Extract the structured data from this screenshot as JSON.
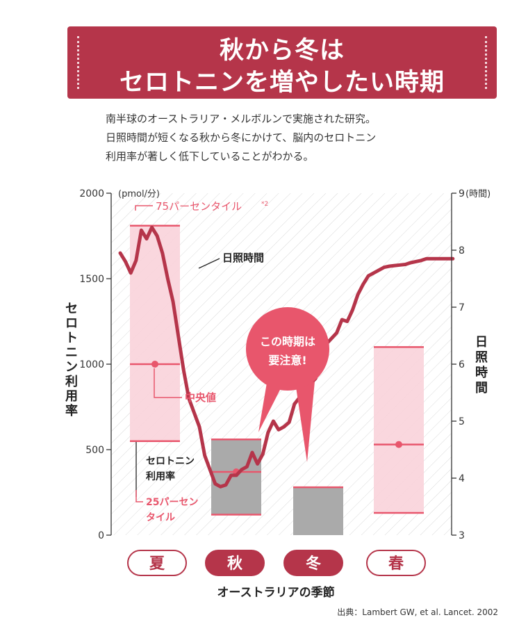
{
  "header": {
    "title_line1": "秋から冬は",
    "title_line2": "セロトニンを増やしたい時期"
  },
  "description": [
    "南半球のオーストラリア・メルボルンで実施された研究。",
    "日照時間が短くなる秋から冬にかけて、脳内のセロトニン",
    "利用率が著しく低下していることがわかる。"
  ],
  "source": "出典：Lambert GW, et al. Lancet. 2002",
  "colors": {
    "accent": "#b5354a",
    "pink": "#e8566c",
    "box_pink": "#f9d3da",
    "box_gray": "#aaaaaa"
  },
  "chart_data": {
    "type": "box-line",
    "title": "",
    "xlabel": "オーストラリアの季節",
    "categories": [
      "夏",
      "秋",
      "冬",
      "春"
    ],
    "left_axis": {
      "label": "セロトニン利用率",
      "unit": "(pmol/分)",
      "range": [
        0,
        2000
      ],
      "ticks": [
        "0",
        "500",
        "1000",
        "1500",
        "2000"
      ]
    },
    "right_axis": {
      "label": "日照時間",
      "unit": "(時間)",
      "range": [
        3,
        9
      ],
      "ticks": [
        "3",
        "4",
        "5",
        "6",
        "7",
        "8",
        "9"
      ]
    },
    "boxes": [
      {
        "season": "夏",
        "p25": 550,
        "median": 1000,
        "p75": 1810
      },
      {
        "season": "秋",
        "p25": 120,
        "median": 370,
        "p75": 560
      },
      {
        "season": "冬",
        "p25": 0,
        "median": null,
        "p75": 280
      },
      {
        "season": "春",
        "p25": 130,
        "median": 530,
        "p75": 1100
      }
    ],
    "daylight_series": {
      "name": "日照時間",
      "x": [
        0,
        1,
        2,
        3,
        4,
        5,
        6,
        7,
        8,
        9,
        10,
        11,
        12,
        13,
        14,
        15,
        16,
        17,
        18,
        19,
        20,
        21,
        22,
        23,
        24,
        25,
        26,
        27,
        28,
        29,
        30,
        31,
        32,
        33,
        34,
        35,
        36,
        37,
        38,
        39,
        40,
        41,
        42,
        43,
        44,
        45,
        46,
        47,
        48,
        49,
        50,
        51,
        52,
        53,
        54,
        55,
        56,
        57,
        58,
        59,
        60,
        61,
        62,
        63
      ],
      "values": [
        7.95,
        7.8,
        7.6,
        7.82,
        8.35,
        8.2,
        8.4,
        8.25,
        7.95,
        7.5,
        7.1,
        6.5,
        5.9,
        5.4,
        5.15,
        4.9,
        4.4,
        4.15,
        3.9,
        3.85,
        3.88,
        4.05,
        4.05,
        4.15,
        4.2,
        4.45,
        4.25,
        4.42,
        4.8,
        5.0,
        4.85,
        4.9,
        4.98,
        5.3,
        5.42,
        5.55,
        5.65,
        5.75,
        6.05,
        6.35,
        6.45,
        6.55,
        6.78,
        6.75,
        6.95,
        7.22,
        7.4,
        7.55,
        7.6,
        7.65,
        7.7,
        7.72,
        7.73,
        7.74,
        7.75,
        7.78,
        7.8,
        7.82,
        7.85,
        7.85,
        7.85,
        7.85,
        7.85,
        7.85
      ]
    },
    "annotations": {
      "p75": "75パーセンタイル",
      "p75_note": "*2",
      "daylight": "日照時間",
      "median": "中央値",
      "rate_line1": "セロトニン",
      "rate_line2": "利用率",
      "p25_line1": "25パーセン",
      "p25_line2": "タイル",
      "callout_line1": "この時期は",
      "callout_line2": "要注意!"
    },
    "grid": false
  }
}
